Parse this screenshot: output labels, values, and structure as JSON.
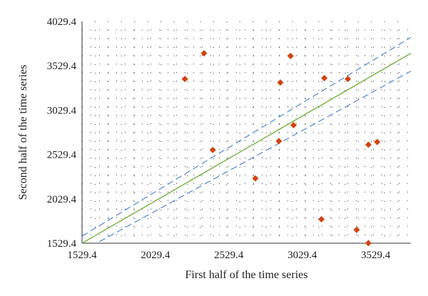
{
  "chart_data": {
    "type": "scatter",
    "xlabel": "First half of the time series",
    "ylabel": "Second half of the time series",
    "xlim": [
      1529.4,
      3769.4
    ],
    "ylim": [
      1529.4,
      4029.4
    ],
    "x_ticks": [
      "1529.4",
      "2029.4",
      "2529.4",
      "3029.4",
      "3529.4"
    ],
    "y_ticks": [
      "1529.4",
      "2029.4",
      "2529.4",
      "3029.4",
      "3529.4",
      "4029.4"
    ],
    "x_tick_values": [
      1529.4,
      2029.4,
      2529.4,
      3029.4,
      3529.4
    ],
    "y_tick_values": [
      1529.4,
      2029.4,
      2529.4,
      3029.4,
      3529.4,
      4029.4
    ],
    "grid": "dotted",
    "points": {
      "color": "#d2430f",
      "x": [
        2870,
        3340,
        2710,
        2880,
        2420,
        2970,
        3480,
        3540,
        2950,
        3160,
        3180,
        3400,
        3480,
        2360,
        2230
      ],
      "y": [
        2680,
        3380,
        2260,
        3340,
        2580,
        2860,
        2640,
        2670,
        3640,
        1800,
        3390,
        1680,
        1530,
        3670,
        3380
      ]
    },
    "reference_line": {
      "color": "#7ab648",
      "x": [
        1529.4,
        3769.4
      ],
      "y": [
        1529.4,
        3669.4
      ]
    },
    "confidence_band": {
      "color": "#5b8fd6",
      "upper": {
        "x": [
          1529.4,
          3769.4
        ],
        "y": [
          1609.4,
          3849.4
        ]
      },
      "lower": {
        "x": [
          1529.4,
          3769.4
        ],
        "y": [
          1439.4,
          3469.4
        ]
      }
    }
  }
}
